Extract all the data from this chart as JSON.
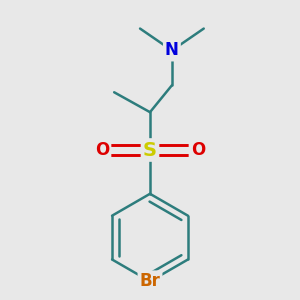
{
  "background_color": "#e8e8e8",
  "bond_color": "#2d7d7d",
  "bond_width": 1.8,
  "atoms": {
    "N": {
      "color": "#0000dd",
      "fontsize": 12,
      "fontweight": "bold"
    },
    "S": {
      "color": "#cccc00",
      "fontsize": 14,
      "fontweight": "bold"
    },
    "O": {
      "color": "#dd0000",
      "fontsize": 12,
      "fontweight": "bold"
    },
    "Br": {
      "color": "#cc6600",
      "fontsize": 12,
      "fontweight": "bold"
    }
  },
  "fig_width": 3.0,
  "fig_height": 3.0,
  "xlim": [
    -1.0,
    1.0
  ],
  "ylim": [
    -1.5,
    1.5
  ]
}
